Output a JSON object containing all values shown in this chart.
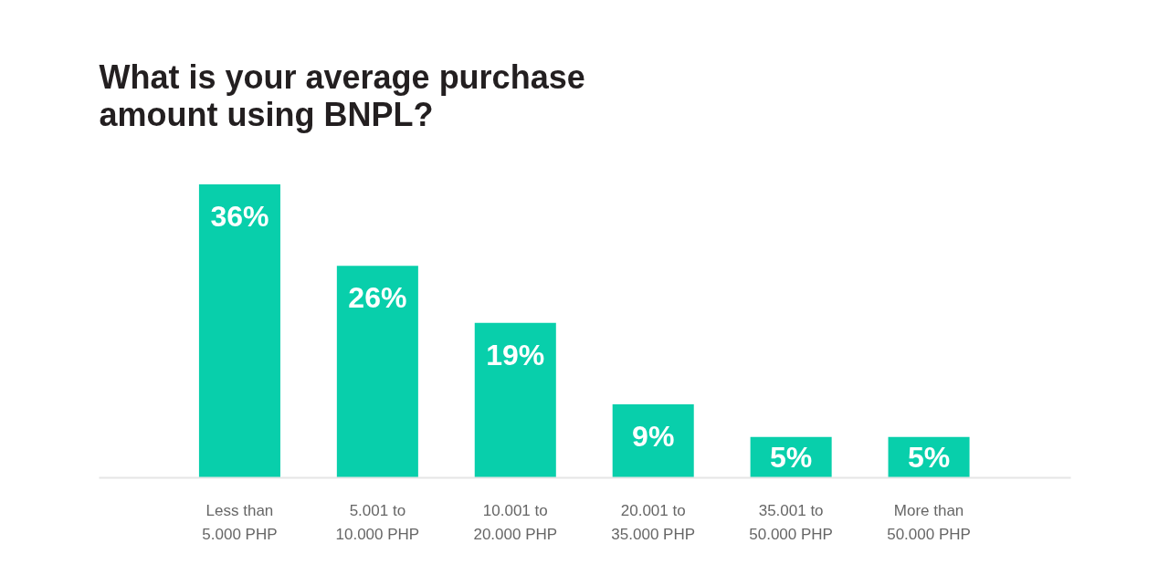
{
  "chart_data": {
    "type": "bar",
    "title": "What is your average purchase amount using BNPL?",
    "categories": [
      "Less than 5.000 PHP",
      "5.001 to 10.000 PHP",
      "10.001 to 20.000 PHP",
      "20.001 to 35.000 PHP",
      "35.001 to 50.000 PHP",
      "More than 50.000 PHP"
    ],
    "values": [
      36,
      26,
      19,
      9,
      5,
      5
    ],
    "color": "#08cfab",
    "value_labels": [
      "36%",
      "26%",
      "19%",
      "9%",
      "5%",
      "5%"
    ]
  }
}
